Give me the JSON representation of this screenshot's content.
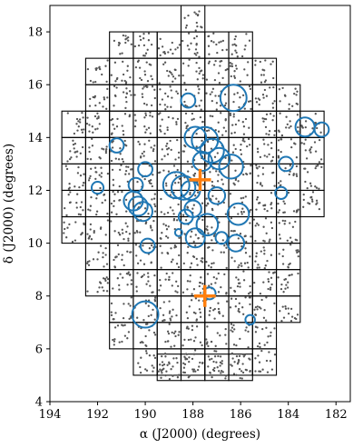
{
  "chart_data": {
    "type": "scatter",
    "xlabel": "α (J2000) (degrees)",
    "ylabel": "δ (J2000) (degrees)",
    "xlim": [
      194,
      181.4
    ],
    "ylim": [
      4,
      19
    ],
    "x_axis_inverted": true,
    "xticks": [
      194,
      192,
      190,
      188,
      186,
      184,
      182
    ],
    "yticks": [
      4,
      6,
      8,
      10,
      12,
      14,
      16,
      18
    ],
    "grid": false,
    "legend": "none",
    "colors": {
      "points": "#555555",
      "circles": "#1f77b4",
      "crosses": "#ff7f0e",
      "tiles": "#000000"
    },
    "tile_size_deg": 1.0,
    "tile_rows": [
      {
        "dec": [
          18,
          19
        ],
        "ra_cols": [
          188
        ]
      },
      {
        "dec": [
          17,
          18
        ],
        "ra_cols": [
          191,
          190,
          189,
          188,
          187,
          186
        ]
      },
      {
        "dec": [
          16,
          17
        ],
        "ra_cols": [
          192,
          191,
          190,
          189,
          188,
          187,
          186,
          185
        ]
      },
      {
        "dec": [
          15,
          16
        ],
        "ra_cols": [
          192,
          191,
          190,
          189,
          188,
          187,
          186,
          185,
          184
        ]
      },
      {
        "dec": [
          14,
          15
        ],
        "ra_cols": [
          193,
          192,
          191,
          190,
          189,
          188,
          187,
          186,
          185,
          184,
          183
        ]
      },
      {
        "dec": [
          13,
          14
        ],
        "ra_cols": [
          193,
          192,
          191,
          190,
          189,
          188,
          187,
          186,
          185,
          184,
          183
        ]
      },
      {
        "dec": [
          12,
          13
        ],
        "ra_cols": [
          193,
          192,
          191,
          190,
          189,
          188,
          187,
          186,
          185,
          184,
          183
        ]
      },
      {
        "dec": [
          11,
          12
        ],
        "ra_cols": [
          193,
          192,
          191,
          190,
          189,
          188,
          187,
          186,
          185,
          184,
          183
        ]
      },
      {
        "dec": [
          10,
          11
        ],
        "ra_cols": [
          193,
          192,
          191,
          190,
          189,
          188,
          187,
          186,
          185,
          184
        ]
      },
      {
        "dec": [
          9,
          10
        ],
        "ra_cols": [
          192,
          191,
          190,
          189,
          188,
          187,
          186,
          185,
          184
        ]
      },
      {
        "dec": [
          8,
          9
        ],
        "ra_cols": [
          192,
          191,
          190,
          189,
          188,
          187,
          186,
          185,
          184
        ]
      },
      {
        "dec": [
          7,
          8
        ],
        "ra_cols": [
          191,
          190,
          189,
          188,
          187,
          186,
          185,
          184
        ]
      },
      {
        "dec": [
          6,
          7
        ],
        "ra_cols": [
          191,
          190,
          189,
          188,
          187,
          186,
          185
        ]
      },
      {
        "dec": [
          5,
          6
        ],
        "ra_cols": [
          190,
          189,
          188,
          187,
          186,
          185
        ]
      },
      {
        "dec": [
          4.9,
          5
        ],
        "ra_cols": []
      }
    ],
    "bottom_row": {
      "dec": [
        4.8,
        5.8
      ],
      "ra_cols": [
        189,
        188,
        187,
        186
      ]
    },
    "points_per_tile": 14,
    "circles": [
      {
        "ra": 188.2,
        "dec": 15.4,
        "r": 0.3
      },
      {
        "ra": 186.3,
        "dec": 15.5,
        "r": 0.55
      },
      {
        "ra": 183.3,
        "dec": 14.4,
        "r": 0.4
      },
      {
        "ra": 182.6,
        "dec": 14.3,
        "r": 0.3
      },
      {
        "ra": 191.2,
        "dec": 13.7,
        "r": 0.3
      },
      {
        "ra": 187.9,
        "dec": 14.0,
        "r": 0.45
      },
      {
        "ra": 187.5,
        "dec": 13.9,
        "r": 0.55
      },
      {
        "ra": 187.2,
        "dec": 13.5,
        "r": 0.5
      },
      {
        "ra": 186.9,
        "dec": 13.2,
        "r": 0.45
      },
      {
        "ra": 187.6,
        "dec": 13.1,
        "r": 0.4
      },
      {
        "ra": 186.4,
        "dec": 12.9,
        "r": 0.5
      },
      {
        "ra": 184.1,
        "dec": 13.0,
        "r": 0.3
      },
      {
        "ra": 190.0,
        "dec": 12.8,
        "r": 0.3
      },
      {
        "ra": 192.0,
        "dec": 12.1,
        "r": 0.25
      },
      {
        "ra": 190.4,
        "dec": 12.2,
        "r": 0.3
      },
      {
        "ra": 188.7,
        "dec": 12.2,
        "r": 0.55
      },
      {
        "ra": 188.4,
        "dec": 12.1,
        "r": 0.5
      },
      {
        "ra": 188.1,
        "dec": 12.0,
        "r": 0.4
      },
      {
        "ra": 187.0,
        "dec": 11.8,
        "r": 0.35
      },
      {
        "ra": 184.3,
        "dec": 11.9,
        "r": 0.25
      },
      {
        "ra": 190.5,
        "dec": 11.6,
        "r": 0.4
      },
      {
        "ra": 190.3,
        "dec": 11.4,
        "r": 0.4
      },
      {
        "ra": 190.1,
        "dec": 11.2,
        "r": 0.4
      },
      {
        "ra": 188.0,
        "dec": 11.3,
        "r": 0.35
      },
      {
        "ra": 188.3,
        "dec": 11.0,
        "r": 0.3
      },
      {
        "ra": 186.1,
        "dec": 11.1,
        "r": 0.45
      },
      {
        "ra": 187.4,
        "dec": 10.7,
        "r": 0.45
      },
      {
        "ra": 188.6,
        "dec": 10.4,
        "r": 0.15
      },
      {
        "ra": 187.9,
        "dec": 10.2,
        "r": 0.4
      },
      {
        "ra": 186.8,
        "dec": 10.2,
        "r": 0.25
      },
      {
        "ra": 186.2,
        "dec": 10.0,
        "r": 0.35
      },
      {
        "ra": 189.9,
        "dec": 9.9,
        "r": 0.3
      },
      {
        "ra": 187.3,
        "dec": 8.1,
        "r": 0.25
      },
      {
        "ra": 190.0,
        "dec": 7.3,
        "r": 0.55
      },
      {
        "ra": 185.6,
        "dec": 7.1,
        "r": 0.2
      }
    ],
    "crosses": [
      {
        "ra": 187.7,
        "dec": 12.4
      },
      {
        "ra": 187.5,
        "dec": 8.0
      }
    ]
  }
}
